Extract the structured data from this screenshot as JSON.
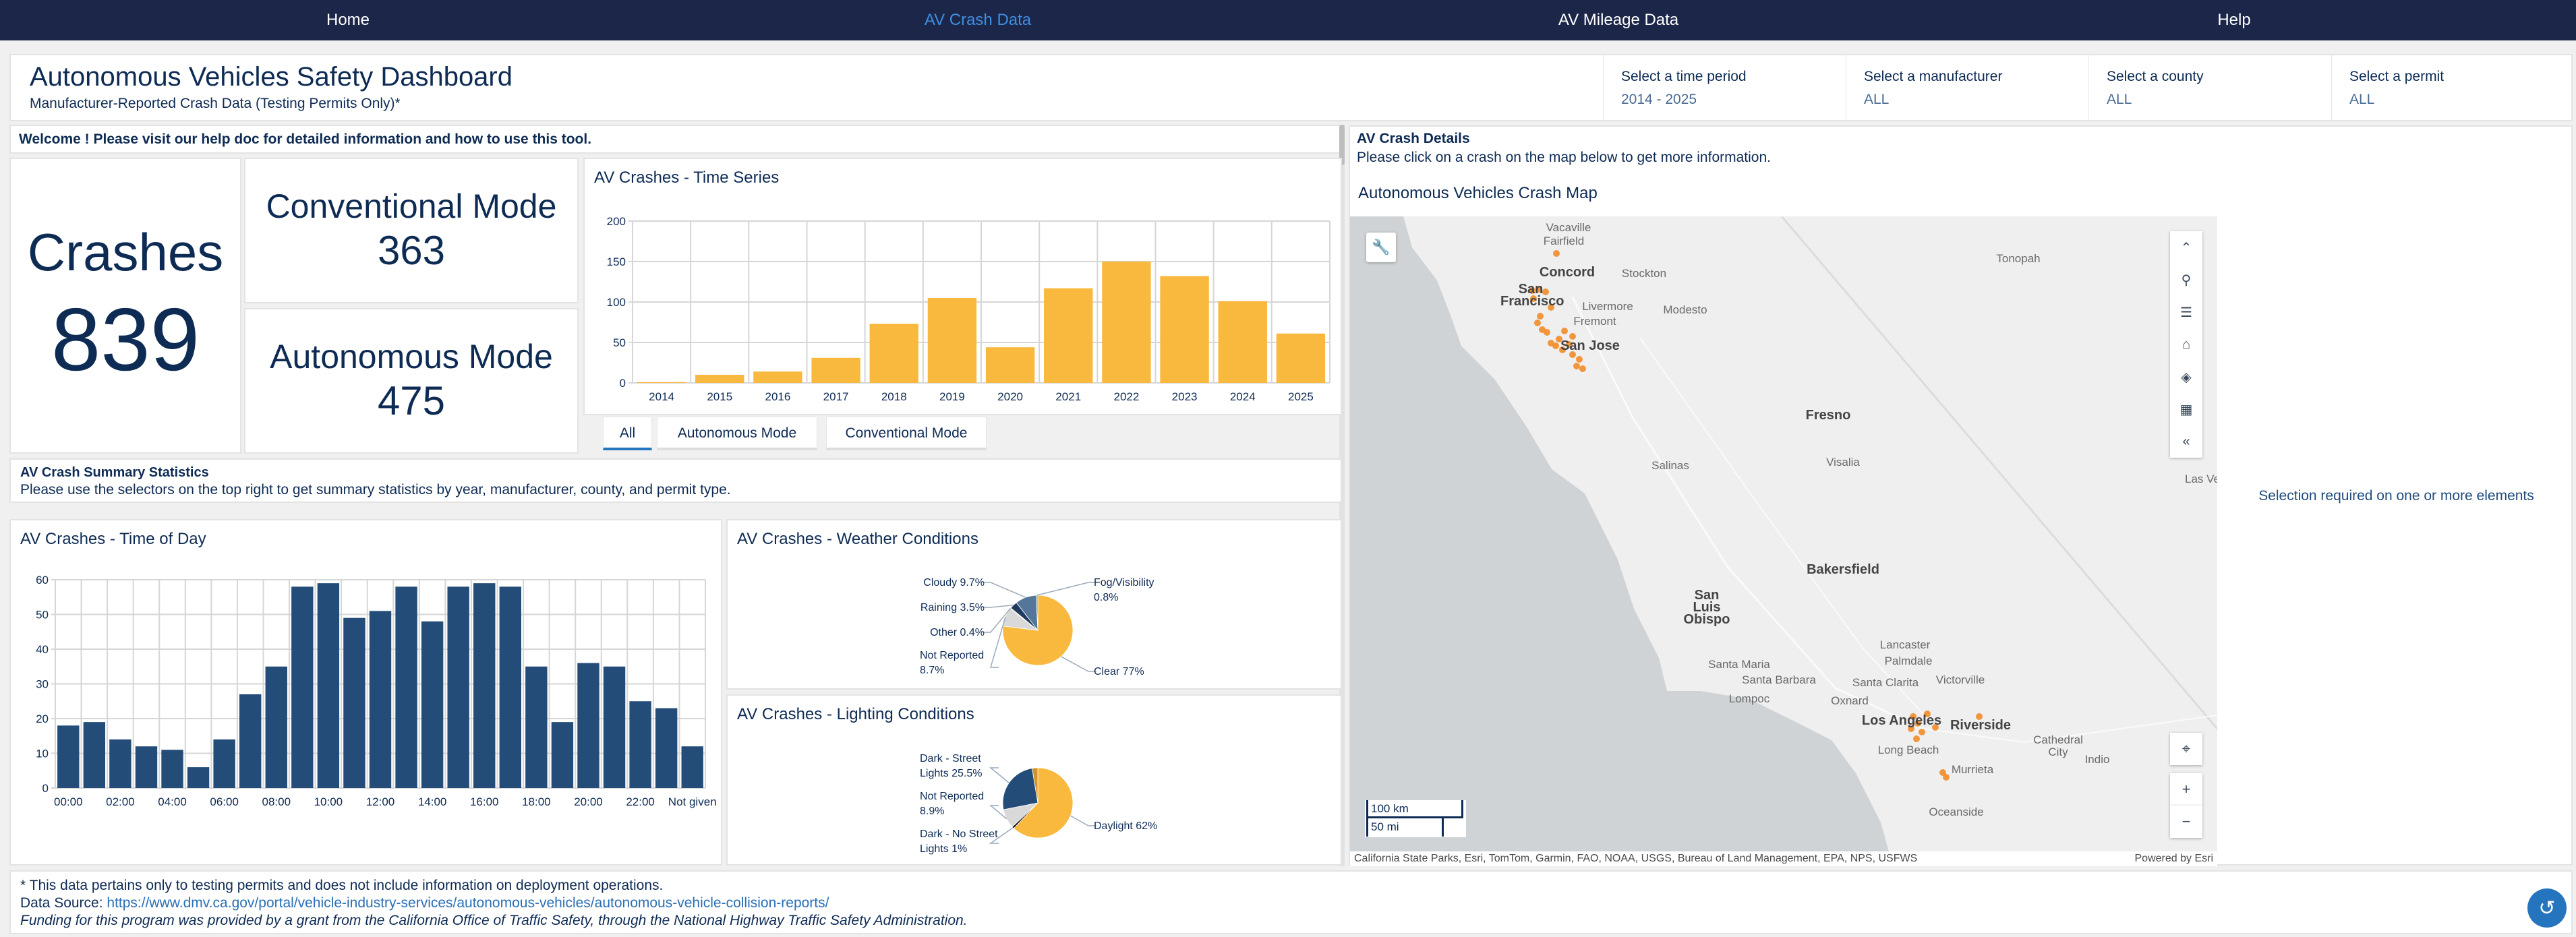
{
  "nav": {
    "items": [
      {
        "label": "Home"
      },
      {
        "label": "AV Crash Data",
        "active": true
      },
      {
        "label": "AV Mileage Data"
      },
      {
        "label": "Help"
      }
    ],
    "active_color": "#3f8fe0",
    "bg_color": "#1b2649"
  },
  "header": {
    "title": "Autonomous Vehicles Safety Dashboard",
    "subtitle": "Manufacturer-Reported Crash Data (Testing Permits Only)*",
    "filters": [
      {
        "label": "Select a time period",
        "value": "2014 - 2025"
      },
      {
        "label": "Select a manufacturer",
        "value": "ALL"
      },
      {
        "label": "Select a county",
        "value": "ALL"
      },
      {
        "label": "Select a permit",
        "value": "ALL"
      }
    ]
  },
  "welcome": "Welcome ! Please visit our help doc for detailed information and how to use this tool.",
  "stats": {
    "crashes_label": "Crashes",
    "crashes_value": "839",
    "conventional_label": "Conventional Mode",
    "conventional_value": "363",
    "autonomous_label": "Autonomous Mode",
    "autonomous_value": "475"
  },
  "tabs": [
    {
      "label": "All",
      "active": true
    },
    {
      "label": "Autonomous Mode"
    },
    {
      "label": "Conventional Mode"
    }
  ],
  "summary": {
    "title": "AV Crash Summary Statistics",
    "text": "Please use the selectors on the top right to get summary statistics by year, manufacturer, county, and permit type."
  },
  "chart_data": [
    {
      "type": "bar",
      "title": "AV Crashes - Time Series",
      "categories": [
        "2014",
        "2015",
        "2016",
        "2017",
        "2018",
        "2019",
        "2020",
        "2021",
        "2022",
        "2023",
        "2024",
        "2025"
      ],
      "values": [
        1,
        10,
        14,
        31,
        73,
        105,
        44,
        117,
        150,
        132,
        101,
        61
      ],
      "ylim": [
        0,
        200
      ],
      "yticks": [
        0,
        50,
        100,
        150,
        200
      ],
      "grid": true,
      "color": "#f9b83e"
    },
    {
      "type": "bar",
      "title": "AV Crashes - Time of Day",
      "categories": [
        "00:00",
        "01:00",
        "02:00",
        "03:00",
        "04:00",
        "05:00",
        "06:00",
        "07:00",
        "08:00",
        "09:00",
        "10:00",
        "11:00",
        "12:00",
        "13:00",
        "14:00",
        "15:00",
        "16:00",
        "17:00",
        "18:00",
        "19:00",
        "20:00",
        "21:00",
        "22:00",
        "23:00",
        "Not given"
      ],
      "tick_labels": [
        "00:00",
        "",
        "02:00",
        "",
        "04:00",
        "",
        "06:00",
        "",
        "08:00",
        "",
        "10:00",
        "",
        "12:00",
        "",
        "14:00",
        "",
        "16:00",
        "",
        "18:00",
        "",
        "20:00",
        "",
        "22:00",
        "",
        "Not given"
      ],
      "values": [
        18,
        19,
        14,
        12,
        11,
        6,
        14,
        27,
        35,
        58,
        59,
        49,
        51,
        58,
        48,
        58,
        59,
        58,
        35,
        19,
        36,
        35,
        25,
        23,
        12
      ],
      "ylim": [
        0,
        60
      ],
      "yticks": [
        0,
        10,
        20,
        30,
        40,
        50,
        60
      ],
      "grid": true,
      "color": "#234d78"
    },
    {
      "type": "pie",
      "title": "AV Crashes - Weather Conditions",
      "slices": [
        {
          "name": "Clear",
          "value": 77,
          "label": "Clear 77%",
          "color": "#f9b83e"
        },
        {
          "name": "Not Reported",
          "value": 8.7,
          "label": "Not Reported 8.7%",
          "color": "#d9d9d9"
        },
        {
          "name": "Other",
          "value": 0.4,
          "label": "Other 0.4%",
          "color": "#e8a33a"
        },
        {
          "name": "Raining",
          "value": 3.5,
          "label": "Raining 3.5%",
          "color": "#1e3a5f"
        },
        {
          "name": "Cloudy",
          "value": 9.7,
          "label": "Cloudy 9.7%",
          "color": "#53769a"
        },
        {
          "name": "Fog/Visibility",
          "value": 0.8,
          "label": "Fog/Visibility 0.8%",
          "color": "#6fa0a0"
        }
      ]
    },
    {
      "type": "pie",
      "title": "AV Crashes - Lighting Conditions",
      "slices": [
        {
          "name": "Daylight",
          "value": 62,
          "label": "Daylight 62%",
          "color": "#f9b83e"
        },
        {
          "name": "Dark - No Street Lights",
          "value": 1,
          "label": "Dark - No Street Lights 1%",
          "color": "#111111"
        },
        {
          "name": "Not Reported",
          "value": 8.9,
          "label": "Not Reported 8.9%",
          "color": "#d9d9d9"
        },
        {
          "name": "Dark - Street Lights",
          "value": 25.5,
          "label": "Dark - Street Lights 25.5%",
          "color": "#234d78"
        },
        {
          "name": "",
          "value": 2.6,
          "label": "",
          "color": "#d4922a"
        }
      ]
    }
  ],
  "details": {
    "title": "AV Crash Details",
    "text": "Please click on a crash on the map below to get more information.",
    "map_title": "Autonomous Vehicles Crash Map",
    "selection_msg": "Selection required on one or more elements"
  },
  "map": {
    "cities": [
      "Vacaville",
      "Fairfield",
      "Concord",
      "Stockton",
      "San Francisco",
      "Livermore",
      "Modesto",
      "Fremont",
      "San Jose",
      "Tonopah",
      "Fresno",
      "Salinas",
      "Visalia",
      "Las Ve",
      "San Luis Obispo",
      "Bakersfield",
      "Santa Maria",
      "Lompoc",
      "Santa Barbara",
      "Santa Clarita",
      "Lancaster",
      "Palmdale",
      "Victorville",
      "Oxnard",
      "Los Angeles",
      "Riverside",
      "Long Beach",
      "Cathedral City",
      "Indio",
      "Murrieta",
      "Oceanside"
    ],
    "scale_km": "100 km",
    "scale_mi": "50 mi",
    "attribution": "California State Parks, Esri, TomTom, Garmin, FAO, NOAA, USGS, Bureau of Land Management, EPA, NPS, USFWS",
    "powered_by": "Powered by Esri",
    "tools": [
      "collapse-up-icon",
      "search-icon",
      "legend-list-icon",
      "home-icon",
      "layers-icon",
      "basemap-gallery-icon",
      "collapse-left-icon"
    ],
    "crash_color": "#f28c28"
  },
  "footer": {
    "note": "* This data pertains only to testing permits and does not include information on deployment operations.",
    "source_label": "Data Source: ",
    "source_url": "https://www.dmv.ca.gov/portal/vehicle-industry-services/autonomous-vehicles/autonomous-vehicle-collision-reports/",
    "funding": "Funding for this program was provided by a grant from the California Office of Traffic Safety, through the National Highway Traffic Safety Administration."
  }
}
